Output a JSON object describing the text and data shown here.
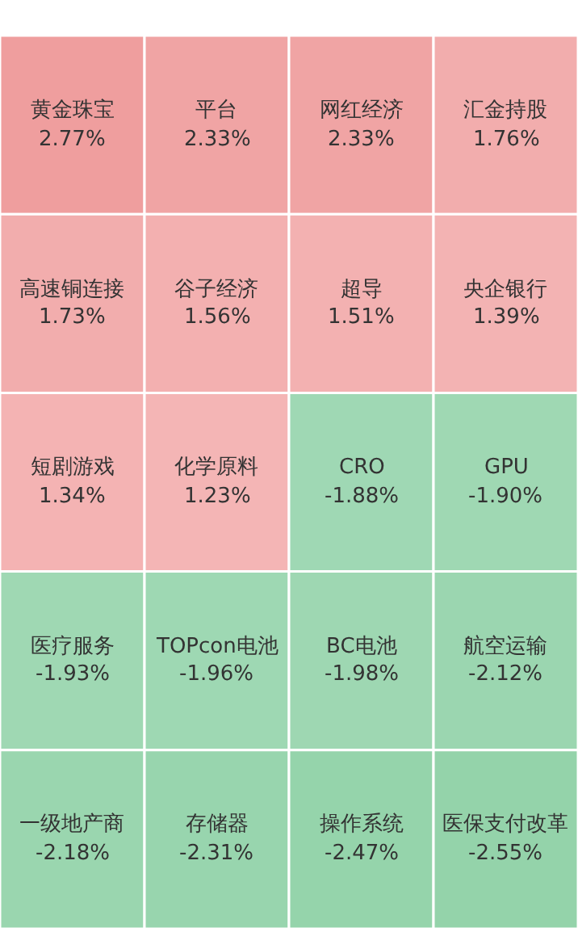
{
  "chart_data": {
    "type": "other",
    "categories": [
      "黄金珠宝",
      "平台",
      "网红经济",
      "汇金持股",
      "高速铜连接",
      "谷子经济",
      "超导",
      "央企银行",
      "短剧游戏",
      "化学原料",
      "CRO",
      "GPU",
      "医疗服务",
      "TOPcon电池",
      "BC电池",
      "航空运输",
      "一级地产商",
      "存储器",
      "操作系统",
      "医保支付改革"
    ],
    "values": [
      2.77,
      2.33,
      2.33,
      1.76,
      1.73,
      1.56,
      1.51,
      1.39,
      1.34,
      1.23,
      -1.88,
      -1.9,
      -1.93,
      -1.96,
      -1.98,
      -2.12,
      -2.18,
      -2.31,
      -2.47,
      -2.55
    ],
    "value_labels": [
      "2.77%",
      "2.33%",
      "2.33%",
      "1.76%",
      "1.73%",
      "1.56%",
      "1.51%",
      "1.39%",
      "1.34%",
      "1.23%",
      "-1.88%",
      "-1.90%",
      "-1.93%",
      "-1.96%",
      "-1.98%",
      "-2.12%",
      "-2.18%",
      "-2.31%",
      "-2.47%",
      "-2.55%"
    ]
  }
}
